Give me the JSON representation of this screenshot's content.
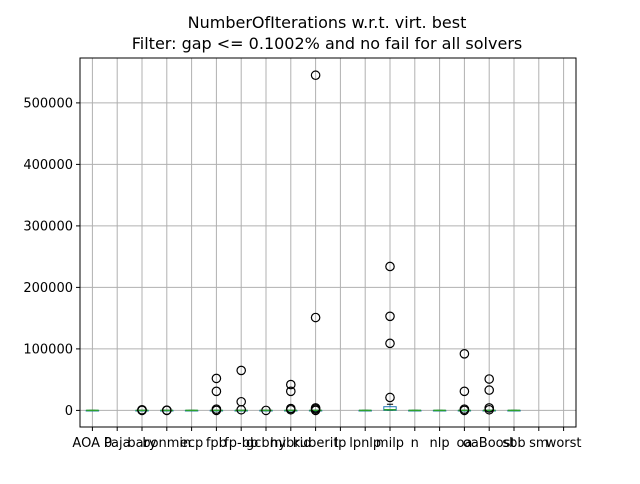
{
  "chart_data": {
    "type": "box",
    "title": "NumberOfIterations w.r.t. virt. best",
    "subtitle": "Filter: gap <= 0.1002% and no fail for all solvers",
    "xlabel": "",
    "ylabel": "",
    "ylim": [
      -27000,
      573000
    ],
    "yticks": [
      0,
      100000,
      200000,
      300000,
      400000,
      500000
    ],
    "ytick_labels": [
      "0",
      "100000",
      "200000",
      "300000",
      "400000",
      "500000"
    ],
    "grid": true,
    "categories": [
      "AOA 0",
      "Paja",
      "bary",
      "bonmin",
      "ecp",
      "fpb",
      "fp-bb",
      "gcbmi",
      "hybrid",
      "kuberit",
      "lp",
      "lpnlp",
      "milp",
      "n",
      "nlp",
      "oa",
      "oaBoost",
      "sbb",
      "sm",
      "worst"
    ],
    "boxes": [
      {
        "category": "AOA 0",
        "q1": 0,
        "median": 0,
        "q3": 0,
        "whisker_low": 0,
        "whisker_high": 0,
        "outliers": []
      },
      {
        "category": "Paja",
        "q1": null,
        "median": null,
        "q3": null,
        "whisker_low": null,
        "whisker_high": null,
        "outliers": []
      },
      {
        "category": "bary",
        "q1": 0,
        "median": 0,
        "q3": 0,
        "whisker_low": 0,
        "whisker_high": 0,
        "outliers": [
          0,
          500,
          1000
        ]
      },
      {
        "category": "bonmin",
        "q1": 0,
        "median": 0,
        "q3": 0,
        "whisker_low": 0,
        "whisker_high": 0,
        "outliers": [
          0,
          400
        ]
      },
      {
        "category": "ecp",
        "q1": 0,
        "median": 0,
        "q3": 0,
        "whisker_low": 0,
        "whisker_high": 0,
        "outliers": []
      },
      {
        "category": "fpb",
        "q1": 0,
        "median": 0,
        "q3": 0,
        "whisker_low": 0,
        "whisker_high": 0,
        "outliers": [
          52000,
          31000,
          2000,
          0
        ]
      },
      {
        "category": "fp-bb",
        "q1": 0,
        "median": 0,
        "q3": 0,
        "whisker_low": 0,
        "whisker_high": 0,
        "outliers": [
          65000,
          14000,
          1000
        ]
      },
      {
        "category": "gcbmi",
        "q1": 0,
        "median": 0,
        "q3": 0,
        "whisker_low": 0,
        "whisker_high": 0,
        "outliers": [
          0
        ]
      },
      {
        "category": "hybrid",
        "q1": 0,
        "median": 0,
        "q3": 0,
        "whisker_low": 0,
        "whisker_high": 0,
        "outliers": [
          42000,
          31000,
          3000,
          1000
        ]
      },
      {
        "category": "kuberit",
        "q1": 0,
        "median": 0,
        "q3": 0,
        "whisker_low": 0,
        "whisker_high": 0,
        "outliers": [
          545000,
          151000,
          4000,
          2000,
          0
        ]
      },
      {
        "category": "lp",
        "q1": null,
        "median": null,
        "q3": null,
        "whisker_low": null,
        "whisker_high": null,
        "outliers": []
      },
      {
        "category": "lpnlp",
        "q1": 0,
        "median": 0,
        "q3": 0,
        "whisker_low": 0,
        "whisker_high": 0,
        "outliers": []
      },
      {
        "category": "milp",
        "q1": 0,
        "median": 1000,
        "q3": 6000,
        "whisker_low": 0,
        "whisker_high": 10000,
        "outliers": [
          234000,
          153000,
          109000,
          21000
        ]
      },
      {
        "category": "n",
        "q1": 0,
        "median": 0,
        "q3": 0,
        "whisker_low": 0,
        "whisker_high": 0,
        "outliers": []
      },
      {
        "category": "nlp",
        "q1": 0,
        "median": 0,
        "q3": 0,
        "whisker_low": 0,
        "whisker_high": 0,
        "outliers": []
      },
      {
        "category": "oa",
        "q1": 0,
        "median": 0,
        "q3": 0,
        "whisker_low": 0,
        "whisker_high": 0,
        "outliers": [
          92000,
          31000,
          2000,
          0
        ]
      },
      {
        "category": "oaBoost",
        "q1": 0,
        "median": 0,
        "q3": 0,
        "whisker_low": 0,
        "whisker_high": 0,
        "outliers": [
          51000,
          33000,
          4000,
          1000
        ]
      },
      {
        "category": "sbb",
        "q1": 0,
        "median": 0,
        "q3": 0,
        "whisker_low": 0,
        "whisker_high": 0,
        "outliers": []
      },
      {
        "category": "sm",
        "q1": null,
        "median": null,
        "q3": null,
        "whisker_low": null,
        "whisker_high": null,
        "outliers": []
      },
      {
        "category": "worst",
        "q1": null,
        "median": null,
        "q3": null,
        "whisker_low": null,
        "whisker_high": null,
        "outliers": []
      }
    ],
    "colors": {
      "box": "#1f77b4",
      "median": "#2ca02c",
      "grid": "#b0b0b0",
      "outlier": "#000000"
    },
    "legend": "none"
  }
}
